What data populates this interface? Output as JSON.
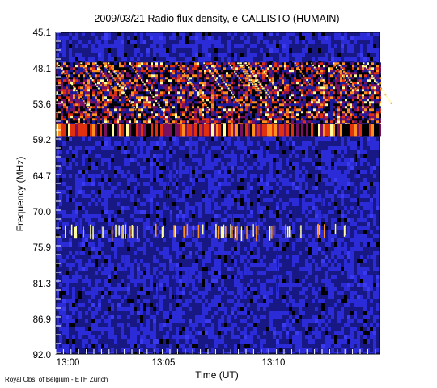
{
  "chart_data": {
    "type": "heatmap",
    "title": "2009/03/21  Radio flux density, e-CALLISTO (HUMAIN)",
    "xlabel": "Time (UT)",
    "ylabel": "Frequency (MHz)",
    "xticks": [
      "13:00",
      "13:05",
      "13:10"
    ],
    "xlim_minutes": [
      0,
      14.5
    ],
    "yticks": [
      "45.1",
      "48.1",
      "53.6",
      "59.2",
      "64.7",
      "70.0",
      "75.9",
      "81.3",
      "86.9",
      "92.0"
    ],
    "ylim": [
      45.1,
      92.0
    ],
    "y_axis_inverted": true,
    "colormap": [
      "#000000",
      "#1a1a9a",
      "#2b2bd8",
      "#7a1060",
      "#e03010",
      "#ff9020",
      "#ffffa0"
    ],
    "features": [
      {
        "band_mhz": [
          49.5,
          58.5
        ],
        "description": "intense bursty emission with drifting streaks"
      },
      {
        "band_mhz": [
          58.5,
          60.0
        ],
        "description": "bright narrow line"
      },
      {
        "band_mhz": [
          73.0,
          74.5
        ],
        "description": "sporadic bright spikes"
      }
    ]
  },
  "footer": {
    "credit": "Royal Obs. of Belgium - ETH Zurich"
  }
}
